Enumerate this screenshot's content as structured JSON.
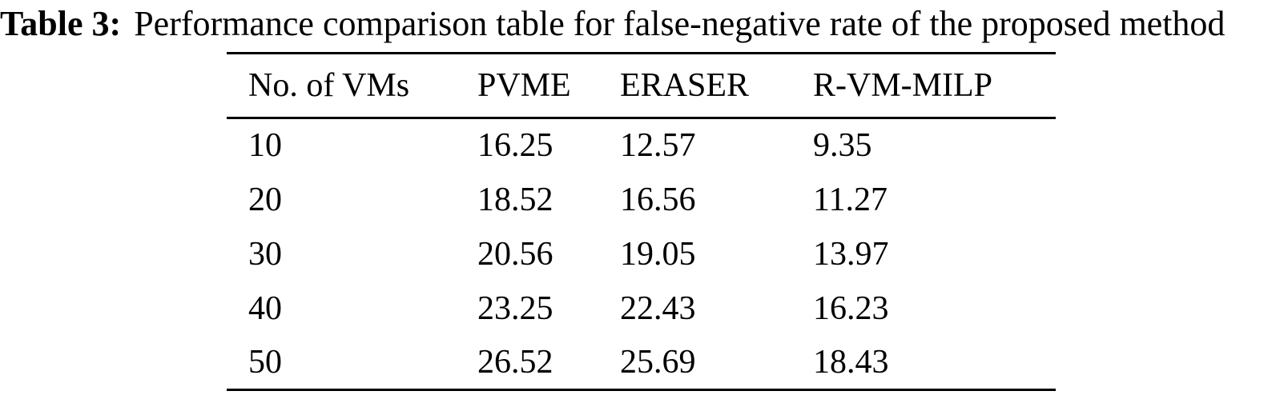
{
  "caption": {
    "label": "Table 3:",
    "text": "Performance comparison table for false-negative rate of the proposed method"
  },
  "table": {
    "columns": [
      "No. of VMs",
      "PVME",
      "ERASER",
      "R-VM-MILP"
    ],
    "rows": [
      [
        "10",
        "16.25",
        "12.57",
        "9.35"
      ],
      [
        "20",
        "18.52",
        "16.56",
        "11.27"
      ],
      [
        "30",
        "20.56",
        "19.05",
        "13.97"
      ],
      [
        "40",
        "23.25",
        "22.43",
        "16.23"
      ],
      [
        "50",
        "26.52",
        "25.69",
        "18.43"
      ]
    ]
  },
  "chart_data": {
    "type": "table",
    "title": "Table 3: Performance comparison table for false-negative rate of the proposed method",
    "columns": [
      "No. of VMs",
      "PVME",
      "ERASER",
      "R-VM-MILP"
    ],
    "rows": [
      [
        10,
        16.25,
        12.57,
        9.35
      ],
      [
        20,
        18.52,
        16.56,
        11.27
      ],
      [
        30,
        20.56,
        19.05,
        13.97
      ],
      [
        40,
        23.25,
        22.43,
        16.23
      ],
      [
        50,
        26.52,
        25.69,
        18.43
      ]
    ]
  },
  "colors": {
    "text": "#000000",
    "background": "#ffffff",
    "rule": "#000000"
  }
}
